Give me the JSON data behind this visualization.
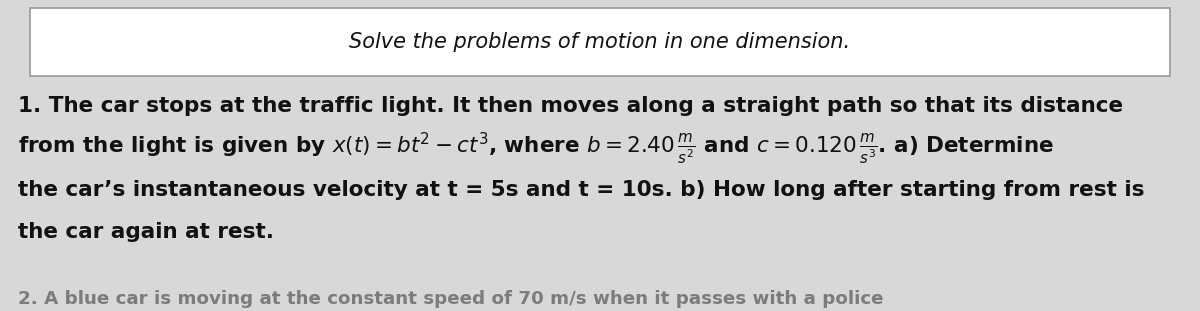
{
  "title": "Solve the problems of motion in one dimension.",
  "title_fontsize": 15,
  "title_style": "italic",
  "title_box_color": "white",
  "title_box_edgecolor": "#999999",
  "background_color": "#d8d8d8",
  "text_color": "#111111",
  "body_fontsize": 15.5,
  "line1": "1. The car stops at the traffic light. It then moves along a straight path so that its distance",
  "line3": "the car’s instantaneous velocity at t = 5s and t = 10s. b) How long after starting from rest is",
  "line4": "the car again at rest.",
  "line5": "2. A blue car is moving at the constant speed of 70 m/s when it passes with a police"
}
